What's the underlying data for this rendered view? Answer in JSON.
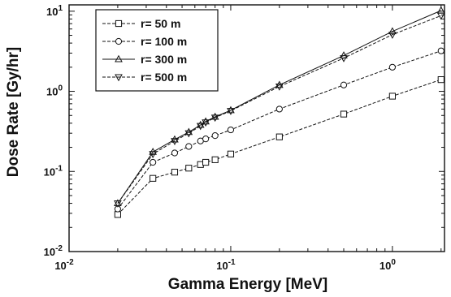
{
  "chart_data": {
    "type": "line",
    "title": "",
    "xlabel": "Gamma Energy [MeV]",
    "ylabel": "Dose Rate [Gy/hr]",
    "xscale": "log",
    "yscale": "log",
    "xlim": [
      0.01,
      2.1
    ],
    "ylim": [
      0.01,
      12
    ],
    "x_ticks": [
      {
        "value": 0.01,
        "base": "10",
        "exp": "-2"
      },
      {
        "value": 0.1,
        "base": "10",
        "exp": "-1"
      },
      {
        "value": 1,
        "base": "10",
        "exp": "0"
      }
    ],
    "y_ticks": [
      {
        "value": 0.01,
        "base": "10",
        "exp": "-2"
      },
      {
        "value": 0.1,
        "base": "10",
        "exp": "-1"
      },
      {
        "value": 1,
        "base": "10",
        "exp": "0"
      },
      {
        "value": 10,
        "base": "10",
        "exp": "1"
      }
    ],
    "grid": false,
    "legend_position": "top-left",
    "x": [
      0.02,
      0.033,
      0.045,
      0.055,
      0.065,
      0.07,
      0.08,
      0.1,
      0.2,
      0.5,
      1.0,
      2.0
    ],
    "series": [
      {
        "name": "r=   50 m",
        "marker": "square",
        "values": [
          0.029,
          0.082,
          0.098,
          0.11,
          0.122,
          0.13,
          0.14,
          0.165,
          0.27,
          0.52,
          0.87,
          1.4
        ]
      },
      {
        "name": "r= 100 m",
        "marker": "circle",
        "values": [
          0.034,
          0.13,
          0.17,
          0.205,
          0.24,
          0.255,
          0.28,
          0.33,
          0.6,
          1.2,
          2.0,
          3.2
        ]
      },
      {
        "name": "r= 300 m",
        "marker": "triangle-up",
        "values": [
          0.04,
          0.175,
          0.25,
          0.31,
          0.38,
          0.42,
          0.48,
          0.58,
          1.2,
          2.8,
          5.6,
          10.2
        ]
      },
      {
        "name": "r= 500 m",
        "marker": "triangle-down",
        "values": [
          0.04,
          0.165,
          0.24,
          0.3,
          0.37,
          0.41,
          0.47,
          0.57,
          1.15,
          2.6,
          5.1,
          8.8
        ]
      }
    ]
  }
}
